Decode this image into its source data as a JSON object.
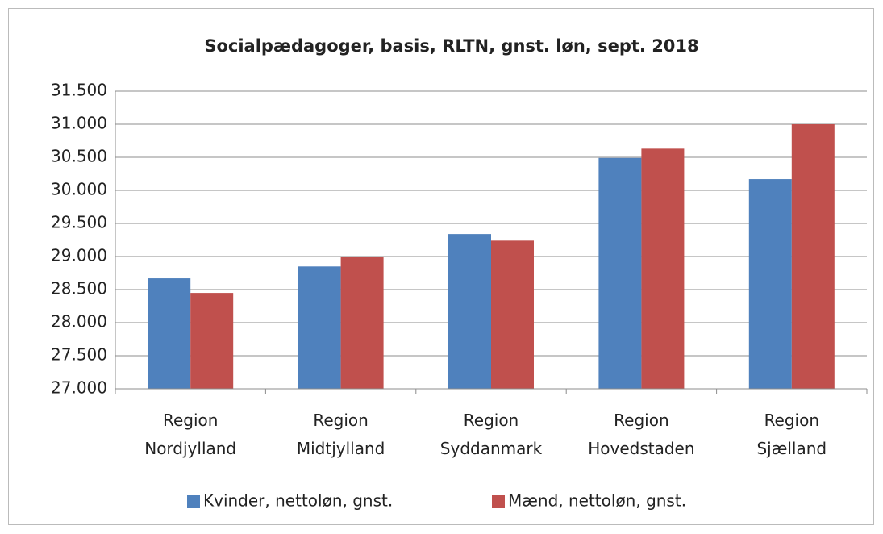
{
  "chart_data": {
    "type": "bar",
    "title": "Socialpædagoger, basis, RLTN, gnst. løn, sept. 2018",
    "categories": [
      "Region Nordjylland",
      "Region Midtjylland",
      "Region Syddanmark",
      "Region Hovedstaden",
      "Region Sjælland"
    ],
    "series": [
      {
        "name": "Kvinder, nettoløn, gnst.",
        "color": "#4f81bd",
        "values": [
          28670,
          28850,
          29340,
          30490,
          30170
        ]
      },
      {
        "name": "Mænd, nettoløn, gnst.",
        "color": "#c0504d",
        "values": [
          28450,
          29000,
          29240,
          30630,
          31000
        ]
      }
    ],
    "ylim": [
      27000,
      31500
    ],
    "yticks": [
      {
        "value": 27000,
        "label": "27.000"
      },
      {
        "value": 27500,
        "label": "27.500"
      },
      {
        "value": 28000,
        "label": "28.000"
      },
      {
        "value": 28500,
        "label": "28.500"
      },
      {
        "value": 29000,
        "label": "29.000"
      },
      {
        "value": 29500,
        "label": "29.500"
      },
      {
        "value": 30000,
        "label": "30.000"
      },
      {
        "value": 30500,
        "label": "30.500"
      },
      {
        "value": 31000,
        "label": "31.000"
      },
      {
        "value": 31500,
        "label": "31.500"
      }
    ],
    "grid": true,
    "legend": "bottom"
  }
}
